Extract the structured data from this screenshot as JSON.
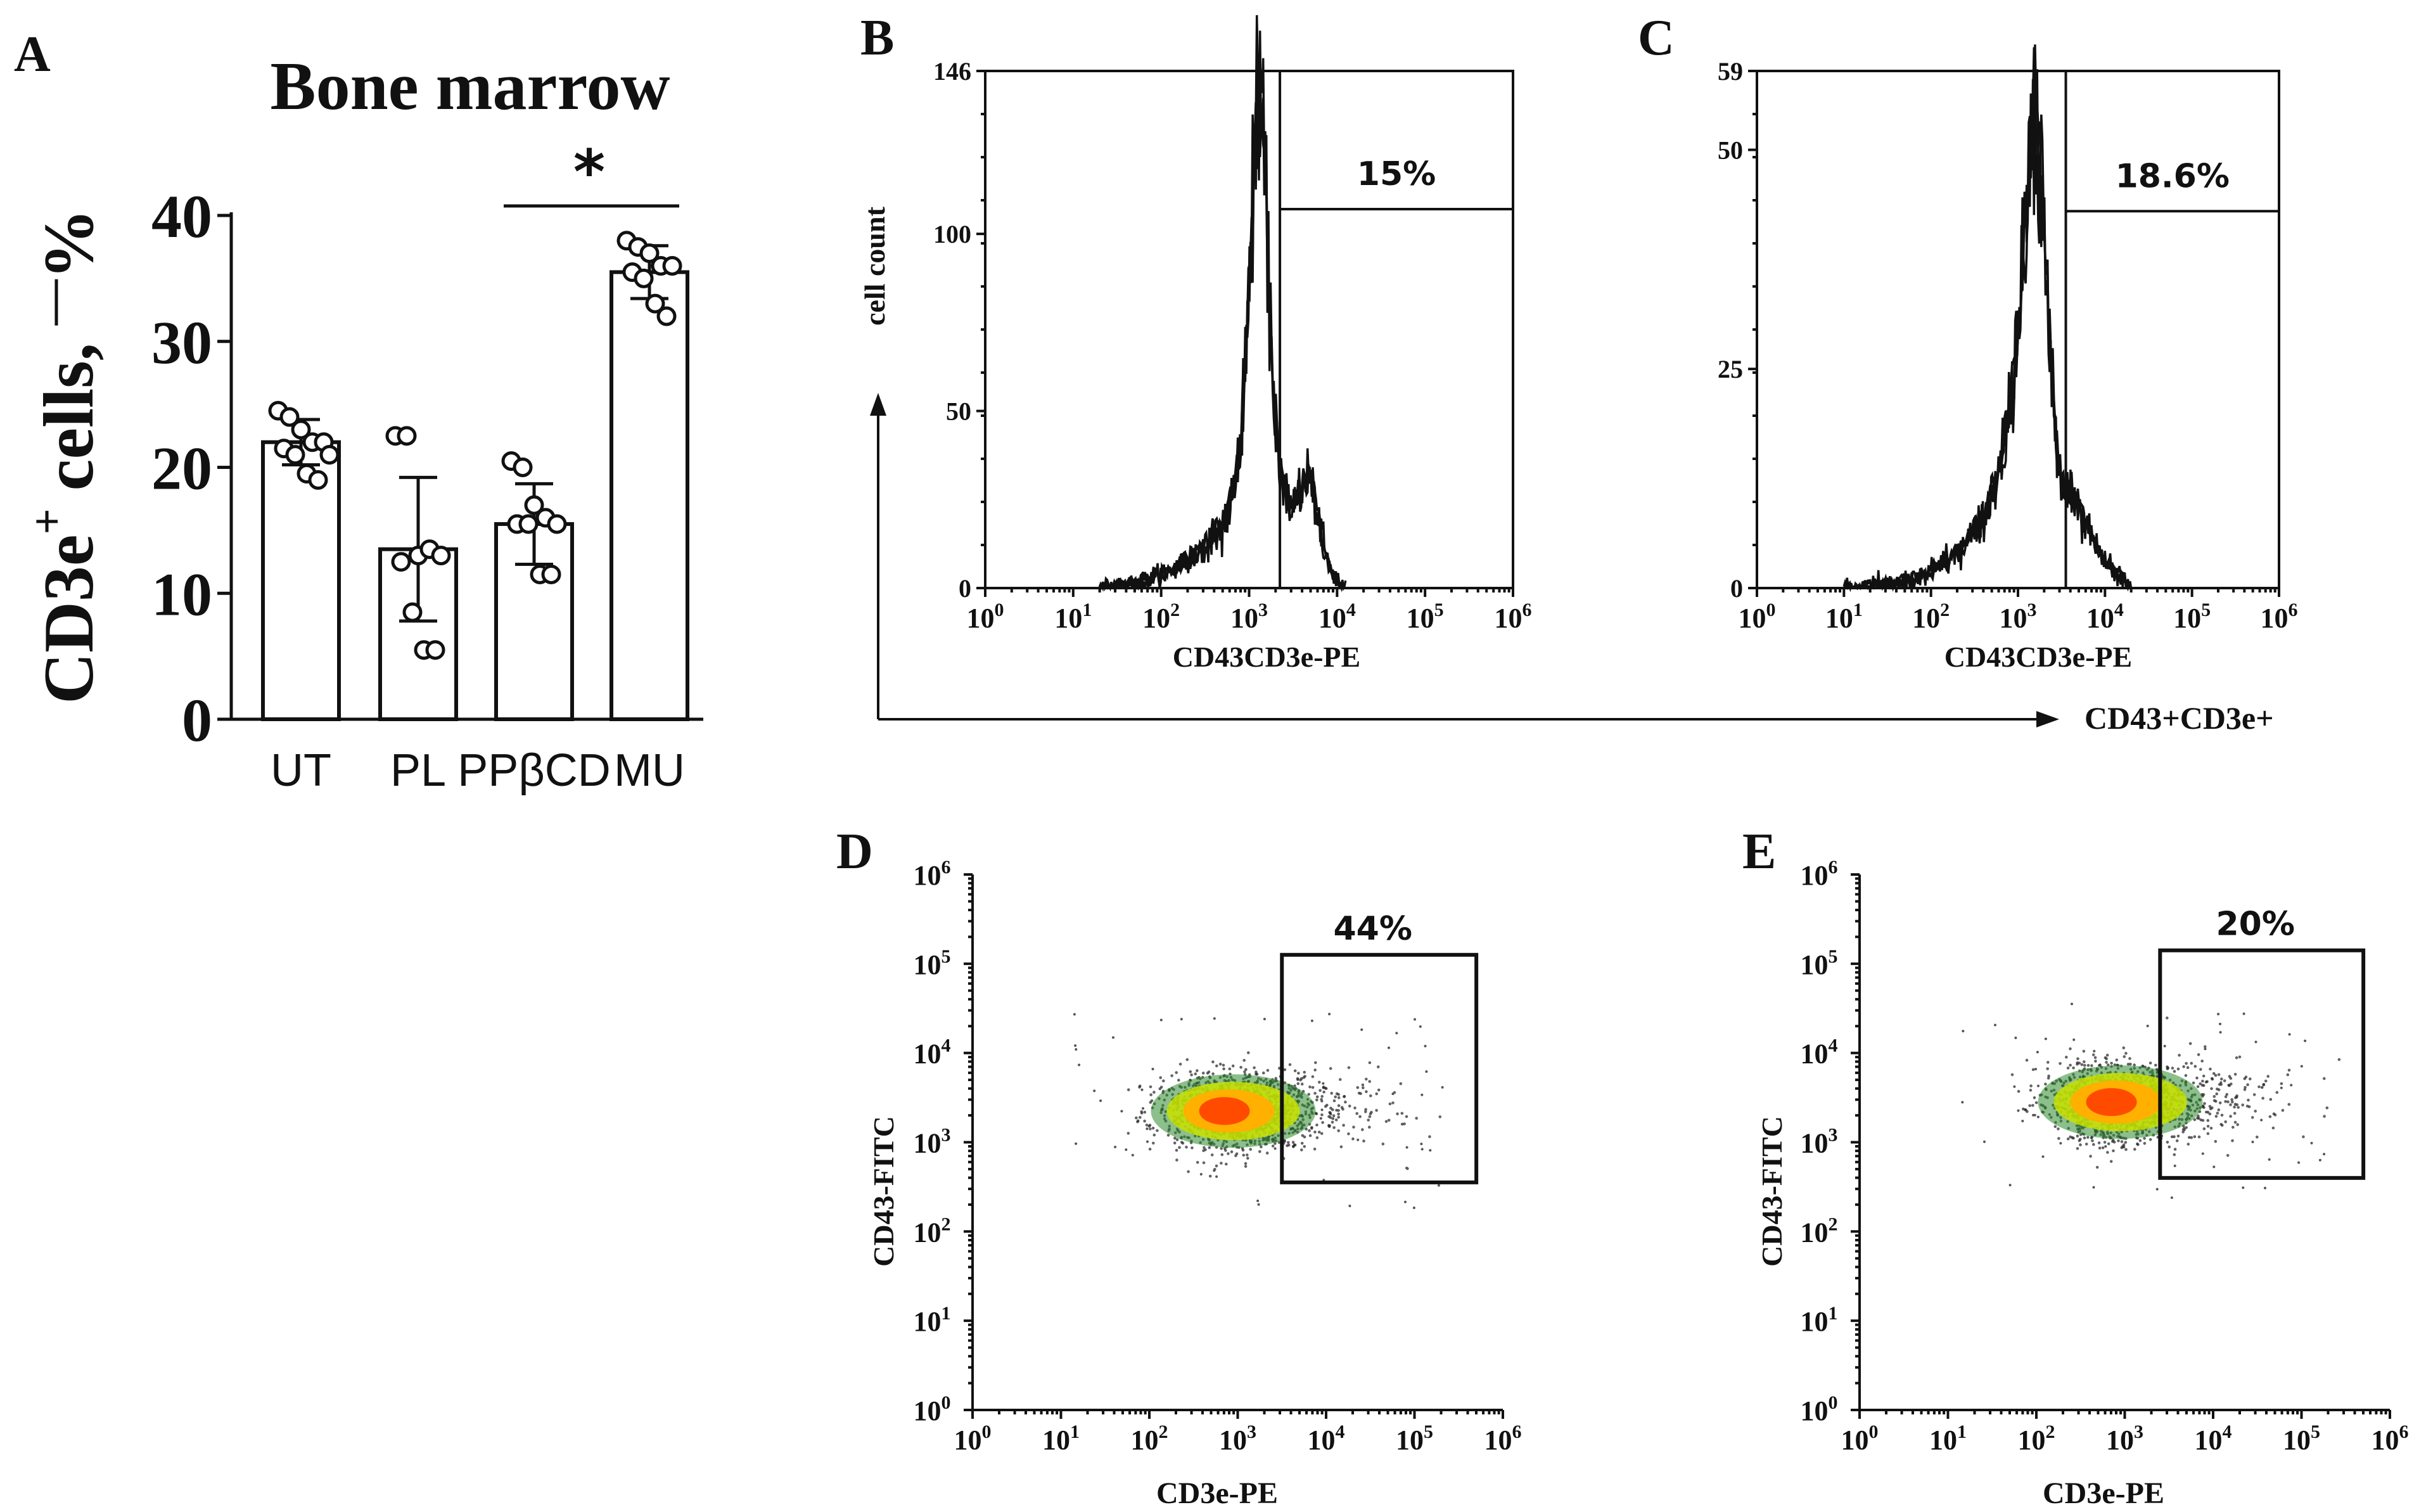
{
  "panels": {
    "A": {
      "letter": "A",
      "chart_data": {
        "type": "bar",
        "title": "Bone marrow",
        "ylabel": "CD3e⁺ cells, ⁻%",
        "ylabel_main": "CD3e",
        "ylabel_sup": "+",
        "ylabel_rest": " cells, ",
        "ylabel_sup2": "—",
        "ylabel_end": "%",
        "categories": [
          "UT",
          "PL",
          "PPβCD",
          "MU"
        ],
        "values": [
          22,
          13.5,
          15.5,
          35.5
        ],
        "errors": [
          1.8,
          5.7,
          3.2,
          2.1
        ],
        "points": [
          [
            24.5,
            24,
            23,
            22,
            22,
            21.5,
            21,
            19.5,
            19,
            21
          ],
          [
            22.5,
            22.5,
            13,
            13.5,
            13,
            12.5,
            8.5,
            5.5,
            5.5
          ],
          [
            20.5,
            20,
            17,
            16,
            15.5,
            15.5,
            15.5,
            11.5,
            11.5
          ],
          [
            38,
            37.5,
            37,
            36,
            36,
            35.5,
            35,
            33,
            32
          ]
        ],
        "ylim": [
          0,
          40
        ],
        "yticks": [
          "0",
          "10",
          "20",
          "30",
          "40"
        ],
        "significance": {
          "between": [
            "PPβCD",
            "MU"
          ],
          "label": "*"
        }
      }
    },
    "B": {
      "letter": "B",
      "chart_data": {
        "type": "line",
        "ylabel": "cell count",
        "xlabel": "CD43CD3e-PE",
        "xscale": "log10",
        "xlim": [
          0,
          6
        ],
        "ylim": [
          0,
          146
        ],
        "yticks": [
          "0",
          "50",
          "100",
          "146"
        ],
        "ytick_values": [
          0,
          50,
          100,
          146
        ],
        "xticks": [
          "0",
          "1",
          "2",
          "3",
          "4",
          "5",
          "6"
        ],
        "gate_label": "15%",
        "gate_from_log": 3.35,
        "gate_level": 107,
        "series": [
          {
            "name": "histogram",
            "x": [
              1.3,
              1.6,
              1.9,
              2.1,
              2.3,
              2.5,
              2.7,
              2.8,
              2.9,
              2.95,
              3.0,
              3.05,
              3.1,
              3.15,
              3.2,
              3.25,
              3.3,
              3.35,
              3.4,
              3.45,
              3.5,
              3.55,
              3.6,
              3.65,
              3.7,
              3.75,
              3.8,
              3.85,
              3.9,
              3.95,
              4.0,
              4.1
            ],
            "y": [
              0,
              1,
              3,
              5,
              8,
              12,
              18,
              25,
              40,
              60,
              85,
              115,
              140,
              130,
              100,
              70,
              45,
              35,
              28,
              24,
              22,
              26,
              30,
              32,
              30,
              24,
              18,
              12,
              7,
              4,
              2,
              0
            ]
          }
        ]
      }
    },
    "C": {
      "letter": "C",
      "chart_data": {
        "type": "line",
        "xlabel": "CD43CD3e-PE",
        "xscale": "log10",
        "xlim": [
          0,
          6
        ],
        "ylim": [
          0,
          59
        ],
        "yticks": [
          "0",
          "25",
          "50",
          "59"
        ],
        "ytick_values": [
          0,
          25,
          50,
          59
        ],
        "xticks": [
          "0",
          "1",
          "2",
          "3",
          "4",
          "5",
          "6"
        ],
        "gate_label": "18.6%",
        "gate_from_log": 3.55,
        "gate_level": 43,
        "series": [
          {
            "name": "histogram",
            "x": [
              1.0,
              1.5,
              1.8,
              2.0,
              2.2,
              2.4,
              2.6,
              2.8,
              2.9,
              3.0,
              3.05,
              3.1,
              3.15,
              3.2,
              3.25,
              3.3,
              3.35,
              3.4,
              3.45,
              3.5,
              3.55,
              3.6,
              3.7,
              3.8,
              3.9,
              4.0,
              4.1,
              4.2,
              4.3
            ],
            "y": [
              0,
              0.5,
              1,
              2,
              3,
              5,
              8,
              14,
              20,
              28,
              36,
              44,
              52,
              57,
              50,
              42,
              30,
              22,
              16,
              12,
              10,
              12,
              9,
              7,
              5,
              3,
              2,
              1,
              0
            ]
          }
        ]
      }
    },
    "D": {
      "letter": "D",
      "chart_data": {
        "type": "scatter",
        "xlabel": "CD3e-PE",
        "ylabel": "CD43-FITC",
        "xscale": "log10",
        "yscale": "log10",
        "xlim": [
          0,
          6
        ],
        "ylim": [
          0,
          6
        ],
        "xticks": [
          "0",
          "1",
          "2",
          "3",
          "4",
          "5",
          "6"
        ],
        "yticks": [
          "0",
          "1",
          "2",
          "3",
          "4",
          "5",
          "6"
        ],
        "gate_label": "44%",
        "gate_x": [
          3.5,
          5.7
        ],
        "gate_y": [
          2.55,
          5.1
        ],
        "center": [
          2.95,
          3.35
        ]
      }
    },
    "E": {
      "letter": "E",
      "chart_data": {
        "type": "scatter",
        "xlabel": "CD3e-PE",
        "ylabel": "CD43-FITC",
        "xscale": "log10",
        "yscale": "log10",
        "xlim": [
          0,
          6
        ],
        "ylim": [
          0,
          6
        ],
        "xticks": [
          "0",
          "1",
          "2",
          "3",
          "4",
          "5",
          "6"
        ],
        "yticks": [
          "0",
          "1",
          "2",
          "3",
          "4",
          "5",
          "6"
        ],
        "gate_label": "20%",
        "gate_x": [
          3.4,
          5.7
        ],
        "gate_y": [
          2.6,
          5.15
        ],
        "center": [
          2.95,
          3.45
        ]
      }
    }
  },
  "shared_axis_label": "CD43+CD3e+",
  "tick_base": "10",
  "colors": {
    "ink": "#111111",
    "hot": "#ff3a00",
    "warm": "#ffb000",
    "mid": "#c8e000",
    "cool": "#2e8b2e"
  }
}
